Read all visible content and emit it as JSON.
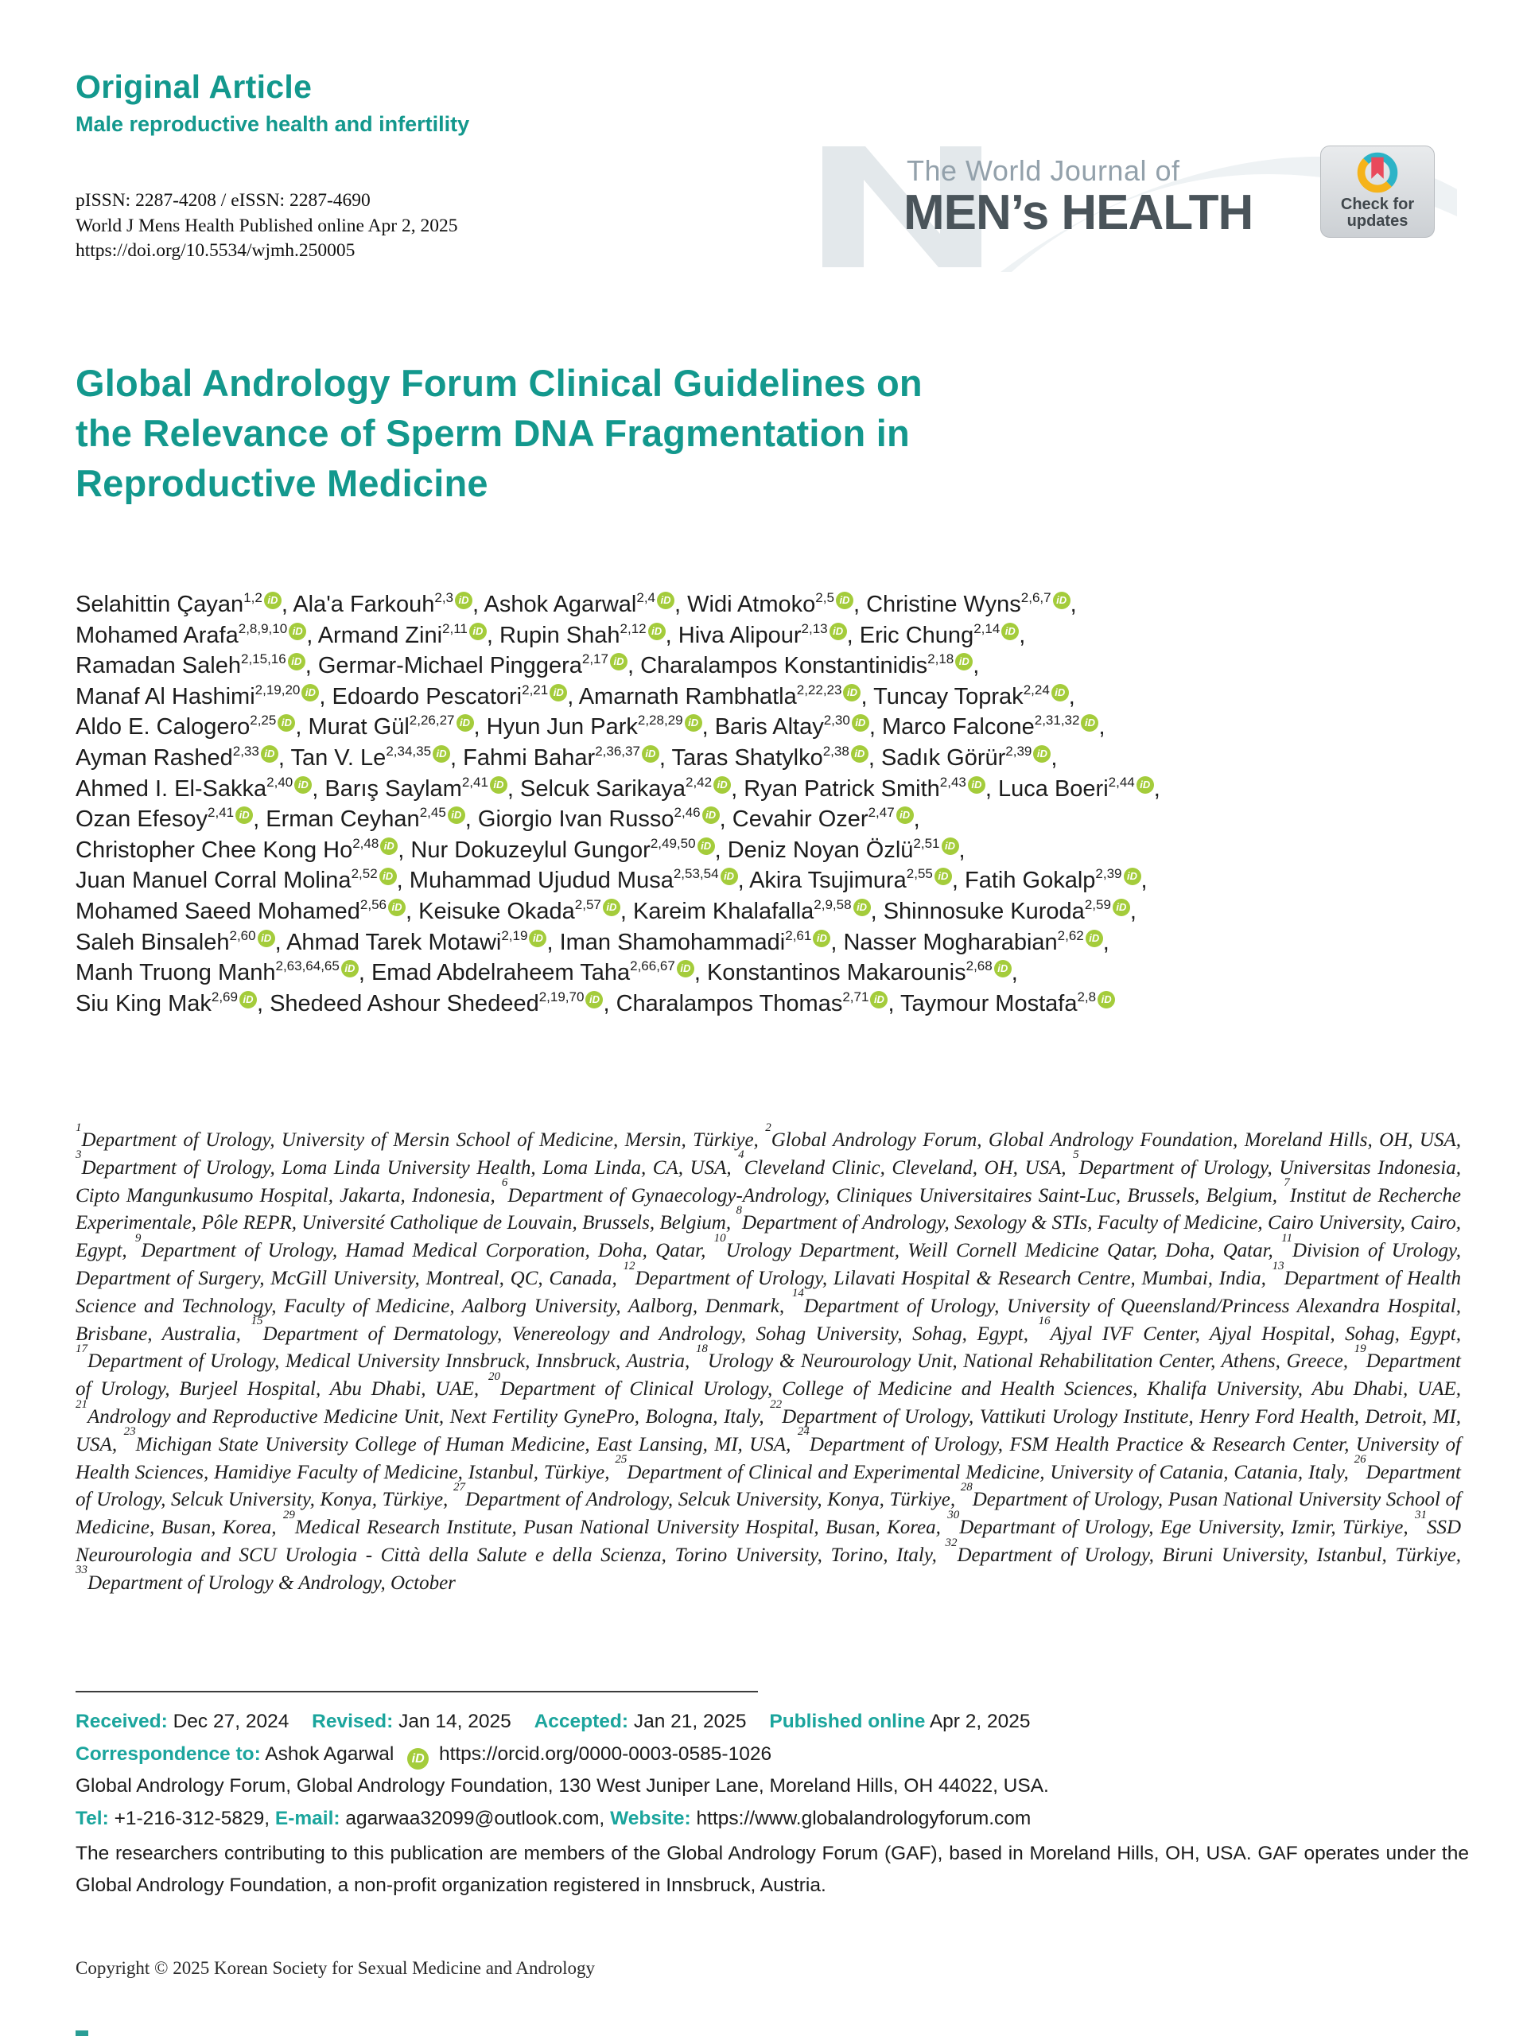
{
  "header": {
    "article_type": "Original Article",
    "category": "Male reproductive health and infertility",
    "issn_line": "pISSN: 2287-4208 / eISSN: 2287-4690",
    "published_line": "World J Mens Health Published online Apr 2, 2025",
    "doi": "https://doi.org/10.5534/wjmh.250005"
  },
  "journal": {
    "logo_top": "The World Journal of",
    "logo_name": "MEN’s HEALTH",
    "crossmark_line1": "Check for",
    "crossmark_line2": "updates"
  },
  "title": {
    "lines": [
      "Global Andrology Forum Clinical Guidelines on",
      "the Relevance of Sperm DNA Fragmentation in",
      "Reproductive Medicine"
    ]
  },
  "orcid_icon_text": "iD",
  "colors": {
    "teal": "#13988d",
    "orcid_green": "#a4cc3b",
    "crossmark_cyan": "#2cb3c7",
    "crossmark_yellow": "#f5b31a",
    "crossmark_red": "#e94a5b",
    "logo_gray": "#4a545a"
  },
  "authors": [
    {
      "name": "Selahittin Çayan",
      "sup": "1,2",
      "br": false
    },
    {
      "name": "Ala'a Farkouh",
      "sup": "2,3",
      "br": false
    },
    {
      "name": "Ashok Agarwal",
      "sup": "2,4",
      "br": false
    },
    {
      "name": "Widi Atmoko",
      "sup": "2,5",
      "br": false
    },
    {
      "name": "Christine Wyns",
      "sup": "2,6,7",
      "br": true
    },
    {
      "name": "Mohamed Arafa",
      "sup": "2,8,9,10",
      "br": false
    },
    {
      "name": "Armand Zini",
      "sup": "2,11",
      "br": false
    },
    {
      "name": "Rupin Shah",
      "sup": "2,12",
      "br": false
    },
    {
      "name": "Hiva Alipour",
      "sup": "2,13",
      "br": false
    },
    {
      "name": "Eric Chung",
      "sup": "2,14",
      "br": true
    },
    {
      "name": "Ramadan Saleh",
      "sup": "2,15,16",
      "br": false
    },
    {
      "name": "Germar-Michael Pinggera",
      "sup": "2,17",
      "br": false
    },
    {
      "name": "Charalampos Konstantinidis",
      "sup": "2,18",
      "br": true
    },
    {
      "name": "Manaf Al Hashimi",
      "sup": "2,19,20",
      "br": false
    },
    {
      "name": "Edoardo Pescatori",
      "sup": "2,21",
      "br": false
    },
    {
      "name": "Amarnath Rambhatla",
      "sup": "2,22,23",
      "br": false
    },
    {
      "name": "Tuncay Toprak",
      "sup": "2,24",
      "br": true
    },
    {
      "name": "Aldo E. Calogero",
      "sup": "2,25",
      "br": false
    },
    {
      "name": "Murat Gül",
      "sup": "2,26,27",
      "br": false
    },
    {
      "name": "Hyun Jun Park",
      "sup": "2,28,29",
      "br": false
    },
    {
      "name": "Baris Altay",
      "sup": "2,30",
      "br": false
    },
    {
      "name": "Marco Falcone",
      "sup": "2,31,32",
      "br": true
    },
    {
      "name": "Ayman Rashed",
      "sup": "2,33",
      "br": false
    },
    {
      "name": "Tan V. Le",
      "sup": "2,34,35",
      "br": false
    },
    {
      "name": "Fahmi Bahar",
      "sup": "2,36,37",
      "br": false
    },
    {
      "name": "Taras Shatylko",
      "sup": "2,38",
      "br": false
    },
    {
      "name": "Sadık Görür",
      "sup": "2,39",
      "br": true
    },
    {
      "name": "Ahmed I. El-Sakka",
      "sup": "2,40",
      "br": false
    },
    {
      "name": "Barış Saylam",
      "sup": "2,41",
      "br": false
    },
    {
      "name": "Selcuk Sarikaya",
      "sup": "2,42",
      "br": false
    },
    {
      "name": "Ryan Patrick Smith",
      "sup": "2,43",
      "br": false
    },
    {
      "name": "Luca Boeri",
      "sup": "2,44",
      "br": true
    },
    {
      "name": "Ozan Efesoy",
      "sup": "2,41",
      "br": false
    },
    {
      "name": "Erman Ceyhan",
      "sup": "2,45",
      "br": false
    },
    {
      "name": "Giorgio Ivan Russo",
      "sup": "2,46",
      "br": false
    },
    {
      "name": "Cevahir Ozer",
      "sup": "2,47",
      "br": true
    },
    {
      "name": "Christopher Chee Kong Ho",
      "sup": "2,48",
      "br": false
    },
    {
      "name": "Nur Dokuzeylul Gungor",
      "sup": "2,49,50",
      "br": false
    },
    {
      "name": "Deniz Noyan Özlü",
      "sup": "2,51",
      "br": true
    },
    {
      "name": "Juan Manuel Corral Molina",
      "sup": "2,52",
      "br": false
    },
    {
      "name": "Muhammad Ujudud Musa",
      "sup": "2,53,54",
      "br": false
    },
    {
      "name": "Akira Tsujimura",
      "sup": "2,55",
      "br": false
    },
    {
      "name": "Fatih Gokalp",
      "sup": "2,39",
      "br": true
    },
    {
      "name": "Mohamed Saeed Mohamed",
      "sup": "2,56",
      "br": false
    },
    {
      "name": "Keisuke Okada",
      "sup": "2,57",
      "br": false
    },
    {
      "name": "Kareim Khalafalla",
      "sup": "2,9,58",
      "br": false
    },
    {
      "name": "Shinnosuke Kuroda",
      "sup": "2,59",
      "br": true
    },
    {
      "name": "Saleh Binsaleh",
      "sup": "2,60",
      "br": false
    },
    {
      "name": "Ahmad Tarek Motawi",
      "sup": "2,19",
      "br": false
    },
    {
      "name": "Iman Shamohammadi",
      "sup": "2,61",
      "br": false
    },
    {
      "name": "Nasser Mogharabian",
      "sup": "2,62",
      "br": true
    },
    {
      "name": "Manh Truong Manh",
      "sup": "2,63,64,65",
      "br": false
    },
    {
      "name": "Emad Abdelraheem Taha",
      "sup": "2,66,67",
      "br": false
    },
    {
      "name": "Konstantinos Makarounis",
      "sup": "2,68",
      "br": true
    },
    {
      "name": "Siu King Mak",
      "sup": "2,69",
      "br": false
    },
    {
      "name": "Shedeed Ashour Shedeed",
      "sup": "2,19,70",
      "br": false
    },
    {
      "name": "Charalampos Thomas",
      "sup": "2,71",
      "br": false
    },
    {
      "name": "Taymour Mostafa",
      "sup": "2,8",
      "br": false
    }
  ],
  "affiliations": [
    {
      "n": "1",
      "text": "Department of Urology, University of Mersin School of Medicine, Mersin, Türkiye"
    },
    {
      "n": "2",
      "text": "Global Andrology Forum, Global Andrology Foundation, Moreland Hills, OH, USA"
    },
    {
      "n": "3",
      "text": "Department of Urology, Loma Linda University Health, Loma Linda, CA, USA"
    },
    {
      "n": "4",
      "text": "Cleveland Clinic, Cleveland, OH, USA"
    },
    {
      "n": "5",
      "text": "Department of Urology, Universitas Indonesia, Cipto Mangunkusumo Hospital, Jakarta, Indonesia"
    },
    {
      "n": "6",
      "text": "Department of Gynaecology-Andrology, Cliniques Universitaires Saint-Luc, Brussels, Belgium"
    },
    {
      "n": "7",
      "text": "Institut de Recherche Experimentale, Pôle REPR, Université Catholique de Louvain, Brussels, Belgium"
    },
    {
      "n": "8",
      "text": "Department of Andrology, Sexology & STIs, Faculty of Medicine, Cairo University, Cairo, Egypt"
    },
    {
      "n": "9",
      "text": "Department of Urology, Hamad Medical Corporation, Doha, Qatar"
    },
    {
      "n": "10",
      "text": "Urology Department, Weill Cornell Medicine Qatar, Doha, Qatar"
    },
    {
      "n": "11",
      "text": "Division of Urology, Department of Surgery, McGill University, Montreal, QC, Canada"
    },
    {
      "n": "12",
      "text": "Department of Urology, Lilavati Hospital & Research Centre, Mumbai, India"
    },
    {
      "n": "13",
      "text": "Department of Health Science and Technology, Faculty of Medicine, Aalborg University, Aalborg, Denmark"
    },
    {
      "n": "14",
      "text": "Department of Urology, University of Queensland/Princess Alexandra Hospital, Brisbane, Australia"
    },
    {
      "n": "15",
      "text": "Department of Dermatology, Venereology and Andrology, Sohag University, Sohag, Egypt"
    },
    {
      "n": "16",
      "text": "Ajyal IVF Center, Ajyal Hospital, Sohag, Egypt"
    },
    {
      "n": "17",
      "text": "Department of Urology, Medical University Innsbruck, Innsbruck, Austria"
    },
    {
      "n": "18",
      "text": "Urology & Neurourology Unit, National Rehabilitation Center, Athens, Greece"
    },
    {
      "n": "19",
      "text": "Department of Urology, Burjeel Hospital, Abu Dhabi, UAE"
    },
    {
      "n": "20",
      "text": "Department of Clinical Urology, College of Medicine and Health Sciences, Khalifa University, Abu Dhabi, UAE"
    },
    {
      "n": "21",
      "text": "Andrology and Reproductive Medicine Unit, Next Fertility GynePro, Bologna, Italy"
    },
    {
      "n": "22",
      "text": "Department of Urology, Vattikuti Urology Institute, Henry Ford Health, Detroit, MI, USA"
    },
    {
      "n": "23",
      "text": "Michigan State University College of Human Medicine, East Lansing, MI, USA"
    },
    {
      "n": "24",
      "text": "Department of Urology, FSM Health Practice & Research Center, University of Health Sciences, Hamidiye Faculty of Medicine, Istanbul, Türkiye"
    },
    {
      "n": "25",
      "text": "Department of Clinical and Experimental Medicine, University of Catania, Catania, Italy"
    },
    {
      "n": "26",
      "text": "Department of Urology, Selcuk University, Konya, Türkiye"
    },
    {
      "n": "27",
      "text": "Department of Andrology, Selcuk University, Konya, Türkiye"
    },
    {
      "n": "28",
      "text": "Department of Urology, Pusan National University School of Medicine, Busan, Korea"
    },
    {
      "n": "29",
      "text": "Medical Research Institute, Pusan National University Hospital, Busan, Korea"
    },
    {
      "n": "30",
      "text": "Departmant of Urology, Ege University, Izmir, Türkiye"
    },
    {
      "n": "31",
      "text": "SSD Neurourologia and SCU Urologia - Città della Salute e della Scienza, Torino University, Torino, Italy"
    },
    {
      "n": "32",
      "text": "Department of Urology, Biruni University, Istanbul, Türkiye"
    },
    {
      "n": "33",
      "text": "Department of Urology & Andrology, October"
    }
  ],
  "meta": {
    "received_label": "Received:",
    "received": "Dec 27, 2024",
    "revised_label": "Revised:",
    "revised": "Jan 14, 2025",
    "accepted_label": "Accepted:",
    "accepted": "Jan 21, 2025",
    "published_label": "Published online",
    "published": "Apr 2, 2025",
    "correspondence_label": "Correspondence to:",
    "correspondence_name": "Ashok Agarwal",
    "orcid_url": "https://orcid.org/0000-0003-0585-1026",
    "address": "Global Andrology Forum, Global Andrology Foundation, 130 West Juniper Lane, Moreland Hills, OH 44022, USA.",
    "tel_label": "Tel:",
    "tel": "+1-216-312-5829,",
    "email_label": "E-mail:",
    "email": "agarwaa32099@outlook.com,",
    "website_label": "Website:",
    "website": "https://www.globalandrologyforum.com",
    "note": "The researchers contributing to this publication are members of the Global Andrology Forum (GAF), based in Moreland Hills, OH, USA. GAF operates under the Global Andrology Foundation, a non-profit organization registered in Innsbruck, Austria.",
    "copyright": "Copyright © 2025 Korean Society for Sexual Medicine and Andrology"
  }
}
